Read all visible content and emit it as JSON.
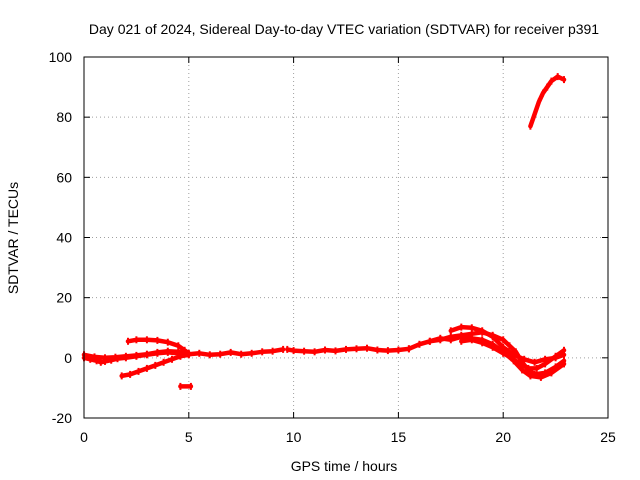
{
  "chart_data": {
    "type": "line",
    "title": "Day 021 of 2024, Sidereal Day-to-day VTEC variation (SDTVAR) for receiver p391",
    "xlabel": "GPS time / hours",
    "ylabel": "SDTVAR / TECUs",
    "xlim": [
      0,
      25
    ],
    "ylim": [
      -20,
      100
    ],
    "xticks": [
      0,
      5,
      10,
      15,
      20,
      25
    ],
    "yticks": [
      -20,
      0,
      20,
      40,
      60,
      80,
      100
    ],
    "grid": true,
    "series_color": "#ff0000",
    "series": [
      {
        "name": "arc-main-low",
        "points": [
          [
            0,
            0
          ],
          [
            0.3,
            -0.5
          ],
          [
            0.6,
            -1
          ],
          [
            0.8,
            -1.5
          ],
          [
            1.0,
            -1.2
          ],
          [
            1.3,
            -0.8
          ],
          [
            1.6,
            -0.3
          ],
          [
            2.0,
            0
          ],
          [
            2.5,
            0.5
          ],
          [
            3.0,
            1
          ],
          [
            3.5,
            1.5
          ],
          [
            4.0,
            1.8
          ],
          [
            4.5,
            1.5
          ],
          [
            5.0,
            1.2
          ]
        ]
      },
      {
        "name": "arc-rising",
        "points": [
          [
            0,
            1
          ],
          [
            0.5,
            0.3
          ],
          [
            1.0,
            0
          ],
          [
            1.5,
            0.2
          ],
          [
            2.0,
            0.5
          ],
          [
            2.5,
            0.8
          ],
          [
            3.0,
            1.2
          ],
          [
            3.5,
            1.8
          ],
          [
            4.0,
            2.2
          ],
          [
            4.5,
            2.0
          ],
          [
            4.8,
            1.5
          ]
        ]
      },
      {
        "name": "arc-upper-hump",
        "points": [
          [
            2.1,
            5.5
          ],
          [
            2.5,
            6
          ],
          [
            3.0,
            6
          ],
          [
            3.5,
            5.8
          ],
          [
            4.0,
            5.2
          ],
          [
            4.5,
            4
          ],
          [
            4.8,
            2.5
          ],
          [
            5.0,
            1.5
          ]
        ]
      },
      {
        "name": "arc-lower-dip",
        "points": [
          [
            1.8,
            -6
          ],
          [
            2.2,
            -5.5
          ],
          [
            2.6,
            -4.5
          ],
          [
            3.0,
            -3.5
          ],
          [
            3.4,
            -2.5
          ],
          [
            3.8,
            -1.5
          ],
          [
            4.2,
            -0.5
          ],
          [
            4.6,
            0.5
          ],
          [
            5.0,
            1.0
          ]
        ]
      },
      {
        "name": "arc-short-neg",
        "points": [
          [
            4.6,
            -9.5
          ],
          [
            5.1,
            -9.5
          ]
        ]
      },
      {
        "name": "arc-mid-1",
        "points": [
          [
            5.0,
            1.2
          ],
          [
            5.5,
            1.5
          ],
          [
            6.0,
            1.0
          ],
          [
            6.5,
            1.2
          ],
          [
            7.0,
            1.8
          ],
          [
            7.5,
            1.2
          ],
          [
            8.0,
            1.5
          ],
          [
            8.5,
            2.0
          ],
          [
            9.0,
            2.2
          ],
          [
            9.5,
            2.8
          ]
        ]
      },
      {
        "name": "arc-mid-2",
        "points": [
          [
            9.7,
            2.8
          ],
          [
            10.0,
            2.4
          ],
          [
            10.5,
            2.2
          ],
          [
            11.0,
            2.0
          ],
          [
            11.5,
            2.6
          ],
          [
            12.0,
            2.3
          ],
          [
            12.5,
            2.8
          ],
          [
            13.0,
            3.0
          ],
          [
            13.5,
            3.2
          ],
          [
            14.0,
            2.6
          ],
          [
            14.5,
            2.4
          ],
          [
            15.0,
            2.6
          ],
          [
            15.5,
            3.0
          ]
        ]
      },
      {
        "name": "arc-mid-3",
        "points": [
          [
            15.5,
            3.0
          ],
          [
            16.0,
            4.5
          ],
          [
            16.5,
            5.5
          ],
          [
            17.0,
            6.0
          ],
          [
            17.5,
            7.0
          ],
          [
            18.0,
            7.5
          ],
          [
            18.5,
            8.0
          ],
          [
            19.0,
            8.5
          ],
          [
            19.5,
            7.5
          ],
          [
            20.0,
            6.0
          ],
          [
            20.3,
            4.0
          ],
          [
            20.6,
            2.0
          ],
          [
            20.9,
            -1.5
          ],
          [
            21.2,
            -4.0
          ],
          [
            21.5,
            -5.5
          ],
          [
            22.0,
            -5.0
          ],
          [
            22.5,
            -3.0
          ],
          [
            22.9,
            -1.0
          ]
        ]
      },
      {
        "name": "arc-mid-4",
        "points": [
          [
            17.5,
            9.0
          ],
          [
            18.0,
            10.2
          ],
          [
            18.5,
            10.0
          ],
          [
            19.0,
            9.0
          ],
          [
            19.5,
            7.0
          ],
          [
            20.0,
            3.5
          ],
          [
            20.5,
            1.0
          ],
          [
            21.0,
            -0.5
          ],
          [
            21.5,
            -1.5
          ],
          [
            22.0,
            -0.5
          ],
          [
            22.5,
            0.0
          ],
          [
            22.9,
            1.0
          ]
        ]
      },
      {
        "name": "arc-mid-5",
        "points": [
          [
            18.0,
            5.5
          ],
          [
            18.5,
            6.0
          ],
          [
            19.0,
            5.0
          ],
          [
            19.5,
            3.5
          ],
          [
            20.0,
            1.5
          ],
          [
            20.4,
            0.0
          ],
          [
            20.8,
            -2.0
          ],
          [
            21.2,
            -3.5
          ],
          [
            21.6,
            -3.5
          ],
          [
            22.0,
            -2.0
          ],
          [
            22.5,
            0.5
          ],
          [
            22.9,
            2.5
          ]
        ]
      },
      {
        "name": "arc-mid-6",
        "points": [
          [
            16.5,
            5.5
          ],
          [
            17.0,
            6.5
          ],
          [
            17.5,
            6.0
          ],
          [
            18.0,
            7.0
          ],
          [
            18.5,
            6.5
          ],
          [
            19.0,
            6.0
          ],
          [
            19.5,
            4.5
          ],
          [
            20.0,
            2.0
          ],
          [
            20.5,
            -1.0
          ],
          [
            20.9,
            -4.0
          ],
          [
            21.3,
            -6.0
          ],
          [
            21.8,
            -6.5
          ],
          [
            22.3,
            -5.0
          ],
          [
            22.9,
            -2.0
          ]
        ]
      },
      {
        "name": "arc-high",
        "points": [
          [
            21.3,
            77
          ],
          [
            21.5,
            81
          ],
          [
            21.7,
            85
          ],
          [
            21.9,
            88
          ],
          [
            22.1,
            90
          ],
          [
            22.3,
            92
          ],
          [
            22.6,
            93.5
          ],
          [
            22.9,
            92.5
          ]
        ]
      }
    ]
  }
}
